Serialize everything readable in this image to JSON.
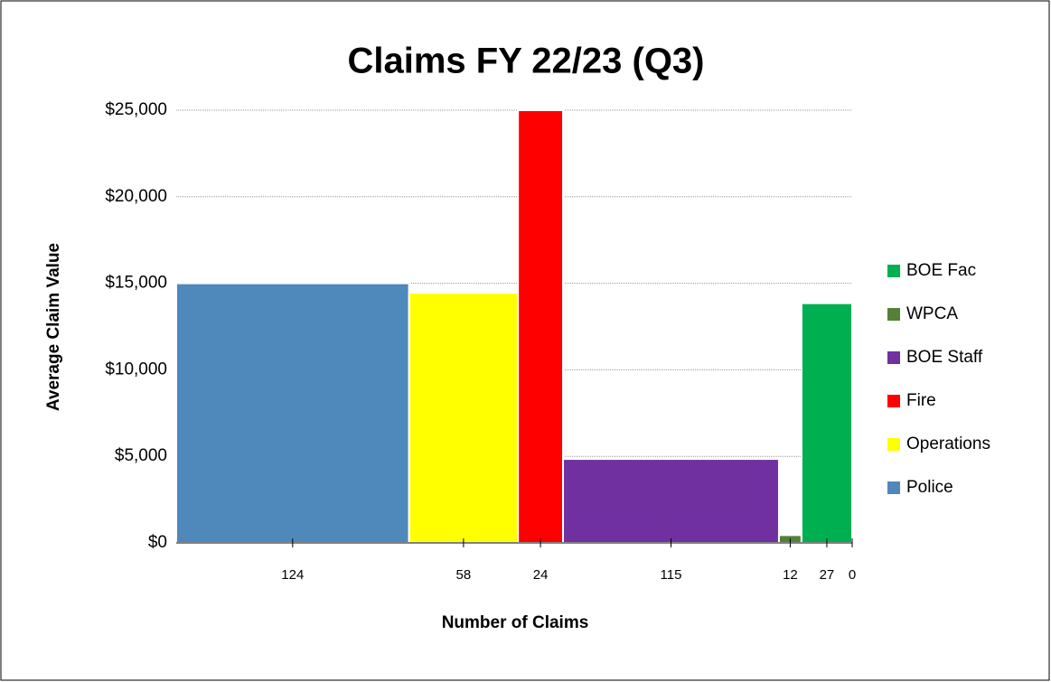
{
  "chart_data": {
    "type": "variable-width-bar",
    "title": "Claims FY 22/23 (Q3)",
    "x_label": "Number of Claims",
    "y_label": "Average Claim Value",
    "series": [
      {
        "name": "Police",
        "color": "#4f88bb",
        "count": 124,
        "value": 15000
      },
      {
        "name": "Operations",
        "color": "#ffff00",
        "count": 58,
        "value": 14450
      },
      {
        "name": "Fire",
        "color": "#ff0000",
        "count": 24,
        "value": 25000
      },
      {
        "name": "BOE Staff",
        "color": "#7030a0",
        "count": 115,
        "value": 4850
      },
      {
        "name": "WPCA",
        "color": "#538135",
        "count": 12,
        "value": 450
      },
      {
        "name": "BOE Fac",
        "color": "#00b050",
        "count": 27,
        "value": 13850
      },
      {
        "count": 0
      }
    ],
    "ylim": [
      0,
      25000
    ],
    "yticks": [
      {
        "value": 0,
        "label": "$0"
      },
      {
        "value": 5000,
        "label": "$5,000"
      },
      {
        "value": 10000,
        "label": "$10,000"
      },
      {
        "value": 15000,
        "label": "$15,000"
      },
      {
        "value": 20000,
        "label": "$20,000"
      },
      {
        "value": 25000,
        "label": "$25,000"
      }
    ],
    "grid": true,
    "legend": "right"
  }
}
